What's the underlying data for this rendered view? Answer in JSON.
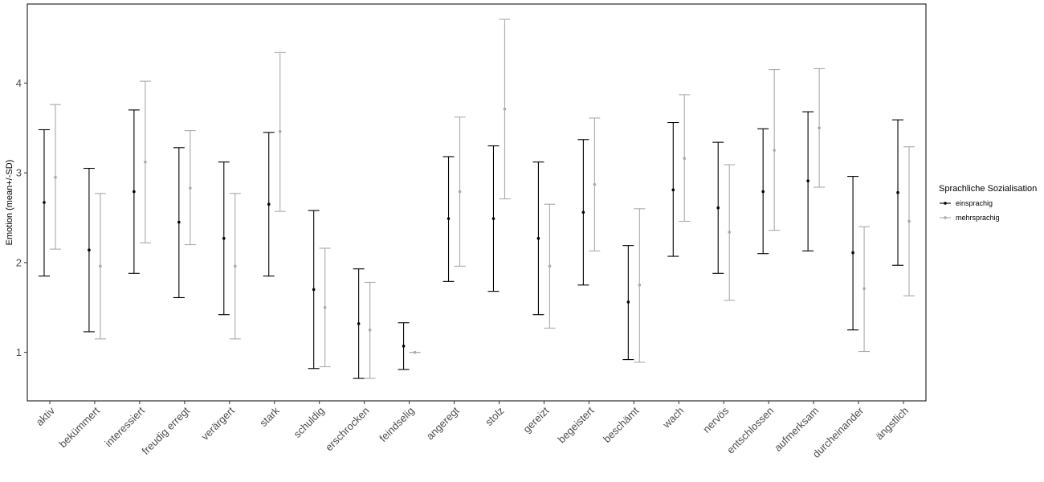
{
  "chart_data": {
    "type": "errorbar",
    "ylabel": "Emotion (mean+/-SD)",
    "xlabel": "",
    "ylim": [
      0.46,
      4.88
    ],
    "y_ticks": [
      1,
      2,
      3,
      4
    ],
    "grid": false,
    "legend_position": "right",
    "legend_title": "Sprachliche Sozialisation",
    "categories": [
      "aktiv",
      "bekümmert",
      "interessiert",
      "freudig erregt",
      "verärgert",
      "stark",
      "schuldig",
      "erschrocken",
      "feindselig",
      "angeregt",
      "stolz",
      "gereizt",
      "begeistert",
      "beschämt",
      "wach",
      "nervös",
      "entschlossen",
      "aufmerksam",
      "durcheinander",
      "ängstlich"
    ],
    "series": [
      {
        "name": "einsprachig",
        "color": "#000000",
        "mean": [
          2.67,
          2.14,
          2.79,
          2.45,
          2.27,
          2.65,
          1.7,
          1.32,
          1.07,
          2.49,
          2.49,
          2.27,
          2.56,
          1.56,
          2.81,
          2.61,
          2.79,
          2.91,
          2.11,
          2.78
        ],
        "lower": [
          1.85,
          1.23,
          1.88,
          1.61,
          1.42,
          1.85,
          0.82,
          0.71,
          0.81,
          1.79,
          1.68,
          1.42,
          1.75,
          0.92,
          2.07,
          1.88,
          2.1,
          2.13,
          1.25,
          1.97
        ],
        "upper": [
          3.48,
          3.05,
          3.7,
          3.28,
          3.12,
          3.45,
          2.58,
          1.93,
          1.33,
          3.18,
          3.3,
          3.12,
          3.37,
          2.19,
          3.56,
          3.34,
          3.49,
          3.68,
          2.96,
          3.59
        ]
      },
      {
        "name": "mehrsprachig",
        "color": "#aaaaaa",
        "mean": [
          2.95,
          1.96,
          3.12,
          2.83,
          1.96,
          3.46,
          1.5,
          1.25,
          1.0,
          2.79,
          3.71,
          1.96,
          2.87,
          1.75,
          3.16,
          2.34,
          3.25,
          3.5,
          1.71,
          2.46
        ],
        "lower": [
          2.15,
          1.15,
          2.22,
          2.2,
          1.15,
          2.57,
          0.84,
          0.71,
          1.0,
          1.96,
          2.71,
          1.27,
          2.13,
          0.89,
          2.46,
          1.58,
          2.36,
          2.84,
          1.01,
          1.63
        ],
        "upper": [
          3.76,
          2.77,
          4.02,
          3.47,
          2.77,
          4.34,
          2.16,
          1.78,
          1.0,
          3.62,
          4.71,
          2.65,
          3.61,
          2.6,
          3.87,
          3.09,
          4.15,
          4.16,
          2.4,
          3.29
        ]
      }
    ]
  }
}
